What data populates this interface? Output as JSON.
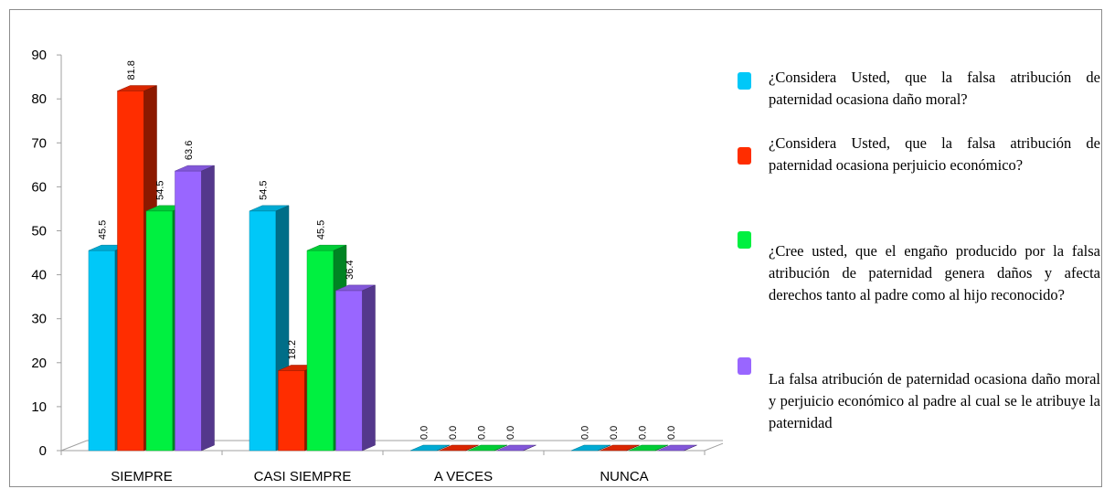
{
  "chart_data": {
    "type": "bar",
    "categories": [
      "SIEMPRE",
      "CASI SIEMPRE",
      "A VECES",
      "NUNCA"
    ],
    "series": [
      {
        "name": "¿Considera Usted, que la falsa atribución de paternidad ocasiona daño moral?",
        "values": [
          45.5,
          54.5,
          0.0,
          0.0
        ],
        "color": "#00c8f8",
        "labels": [
          "45.5",
          "54.5",
          "0.0",
          "0.0"
        ]
      },
      {
        "name": "¿Considera Usted, que la falsa atribución de paternidad ocasiona perjuicio económico?",
        "values": [
          81.8,
          18.2,
          0.0,
          0.0
        ],
        "color": "#ff2d00",
        "labels": [
          "81.8",
          "18.2",
          "0.0",
          "0.0"
        ]
      },
      {
        "name": "¿Cree usted, que el engaño producido por la falsa atribución de paternidad genera daños y afecta derechos tanto al padre como al hijo reconocido?",
        "values": [
          54.5,
          45.5,
          0.0,
          0.0
        ],
        "color": "#00f040",
        "labels": [
          "54.5",
          "45.5",
          "0.0",
          "0.0"
        ]
      },
      {
        "name": "La falsa atribución de paternidad ocasiona daño moral y perjuicio económico al padre al cual se le atribuye la paternidad",
        "values": [
          63.6,
          36.4,
          0.0,
          0.0
        ],
        "color": "#9966ff",
        "labels": [
          "63.6",
          "36.4",
          "0.0",
          "0.0"
        ]
      }
    ],
    "ylim": [
      0,
      90
    ],
    "yticks": [
      "0",
      "10",
      "20",
      "30",
      "40",
      "50",
      "60",
      "70",
      "80",
      "90"
    ],
    "grid": false,
    "legend_position": "right",
    "style": "3d-clustered-column"
  }
}
